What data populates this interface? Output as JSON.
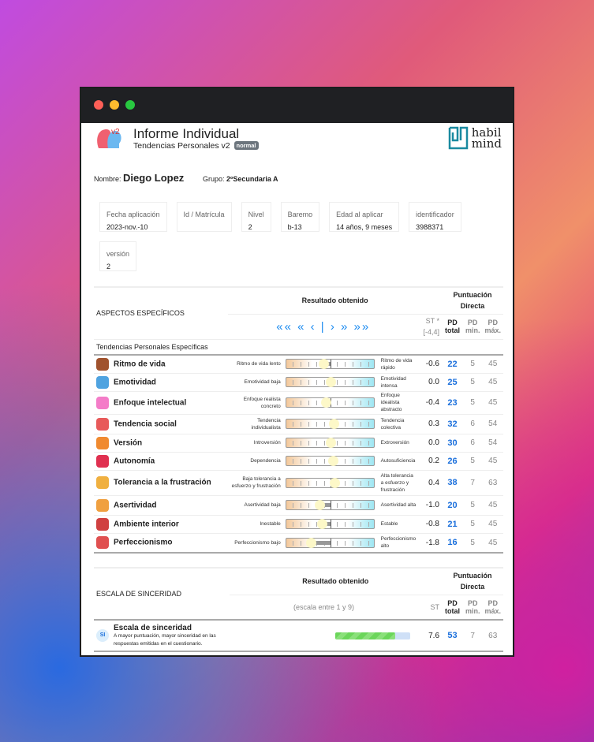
{
  "header": {
    "title": "Informe Individual",
    "subtitle": "Tendencias Personales v2",
    "badge": "normal",
    "logo_version": "v2",
    "brand_line1": "habil",
    "brand_line2": "mind"
  },
  "student": {
    "name_label": "Nombre:",
    "name": "Diego Lopez",
    "group_label": "Grupo:",
    "group": "2ºSecundaria A"
  },
  "cards": [
    {
      "label": "Fecha aplicación",
      "value": "2023-nov.-10"
    },
    {
      "label": "Id / Matrícula",
      "value": ""
    },
    {
      "label": "Nivel",
      "value": "2"
    },
    {
      "label": "Baremo",
      "value": "b-13"
    },
    {
      "label": "Edad al aplicar",
      "value": "14 años, 9 meses"
    },
    {
      "label": "identificador",
      "value": "3988371"
    },
    {
      "label": "versión",
      "value": "2"
    }
  ],
  "specific": {
    "section_title": "ASPECTOS ESPECÍFICOS",
    "result_header": "Resultado obtenido",
    "pd_header": "Puntuación Directa",
    "nav_arrows": "«« « ‹ | › » »»",
    "st_header": "ST *",
    "st_range": "[-4,4]",
    "pd_total": "PD total",
    "pd_min": "PD min.",
    "pd_max": "PD máx.",
    "group_title": "Tendencias Personales Específicas",
    "rows": [
      {
        "name": "Ritmo de vida",
        "low": "Ritmo de vida lento",
        "high": "Ritmo de vida rápido",
        "st": "-0.6",
        "pd": "22",
        "min": "5",
        "max": "45",
        "icon": "clock-hand-icon",
        "color": "#a0522d"
      },
      {
        "name": "Emotividad",
        "low": "Emotividad baja",
        "high": "Emotividad intensa",
        "st": "0.0",
        "pd": "25",
        "min": "5",
        "max": "45",
        "icon": "emotions-head-icon",
        "color": "#4fa3e0"
      },
      {
        "name": "Enfoque intelectual",
        "low": "Enfoque realista concreto",
        "high": "Enfoque idealista abstracto",
        "st": "-0.4",
        "pd": "23",
        "min": "5",
        "max": "45",
        "icon": "brain-icon",
        "color": "#f47cc8"
      },
      {
        "name": "Tendencia social",
        "low": "Tendencia individualista",
        "high": "Tendencia colectiva",
        "st": "0.3",
        "pd": "32",
        "min": "6",
        "max": "54",
        "icon": "people-network-icon",
        "color": "#e85a5a"
      },
      {
        "name": "Versión",
        "low": "Introversión",
        "high": "Extroversión",
        "st": "0.0",
        "pd": "30",
        "min": "6",
        "max": "54",
        "icon": "extrovert-face-icon",
        "color": "#f08a30"
      },
      {
        "name": "Autonomía",
        "low": "Dependencia",
        "high": "Autosuficiencia",
        "st": "0.2",
        "pd": "26",
        "min": "5",
        "max": "45",
        "icon": "arrows-split-icon",
        "color": "#e03050"
      },
      {
        "name": "Tolerancia a la frustración",
        "low": "Baja tolerancia a esfuerzo y frustración",
        "high": "Alta tolerancia a esfuerzo y frustración",
        "st": "0.4",
        "pd": "38",
        "min": "7",
        "max": "63",
        "icon": "chat-bubbles-icon",
        "color": "#f0b040"
      },
      {
        "name": "Asertividad",
        "low": "Asertividad baja",
        "high": "Asertividad alta",
        "st": "-1.0",
        "pd": "20",
        "min": "5",
        "max": "45",
        "icon": "assertive-nodes-icon",
        "color": "#f0a040"
      },
      {
        "name": "Ambiente interior",
        "low": "Inestable",
        "high": "Estable",
        "st": "-0.8",
        "pd": "21",
        "min": "5",
        "max": "45",
        "icon": "stressed-person-icon",
        "color": "#d04040"
      },
      {
        "name": "Perfeccionismo",
        "low": "Perfeccionismo bajo",
        "high": "Perfeccionismo alto",
        "st": "-1.8",
        "pd": "16",
        "min": "5",
        "max": "45",
        "icon": "perfectionist-person-icon",
        "color": "#e05050"
      }
    ]
  },
  "sincerity": {
    "section_title": "ESCALA DE SINCERIDAD",
    "result_header": "Resultado obtenido",
    "pd_header": "Puntuación Directa",
    "scale_note": "(escala entre 1 y 9)",
    "st_header": "ST",
    "pd_total": "PD total",
    "pd_min": "PD min.",
    "pd_max": "PD máx.",
    "row": {
      "badge": "SI",
      "name": "Escala de sinceridad",
      "desc": "A mayor puntuación, mayor sinceridad en las respuestas emitidas en el cuestionario.",
      "st": "7.6",
      "pd": "53",
      "min": "7",
      "max": "63",
      "scale_min": 1,
      "scale_max": 9
    }
  }
}
